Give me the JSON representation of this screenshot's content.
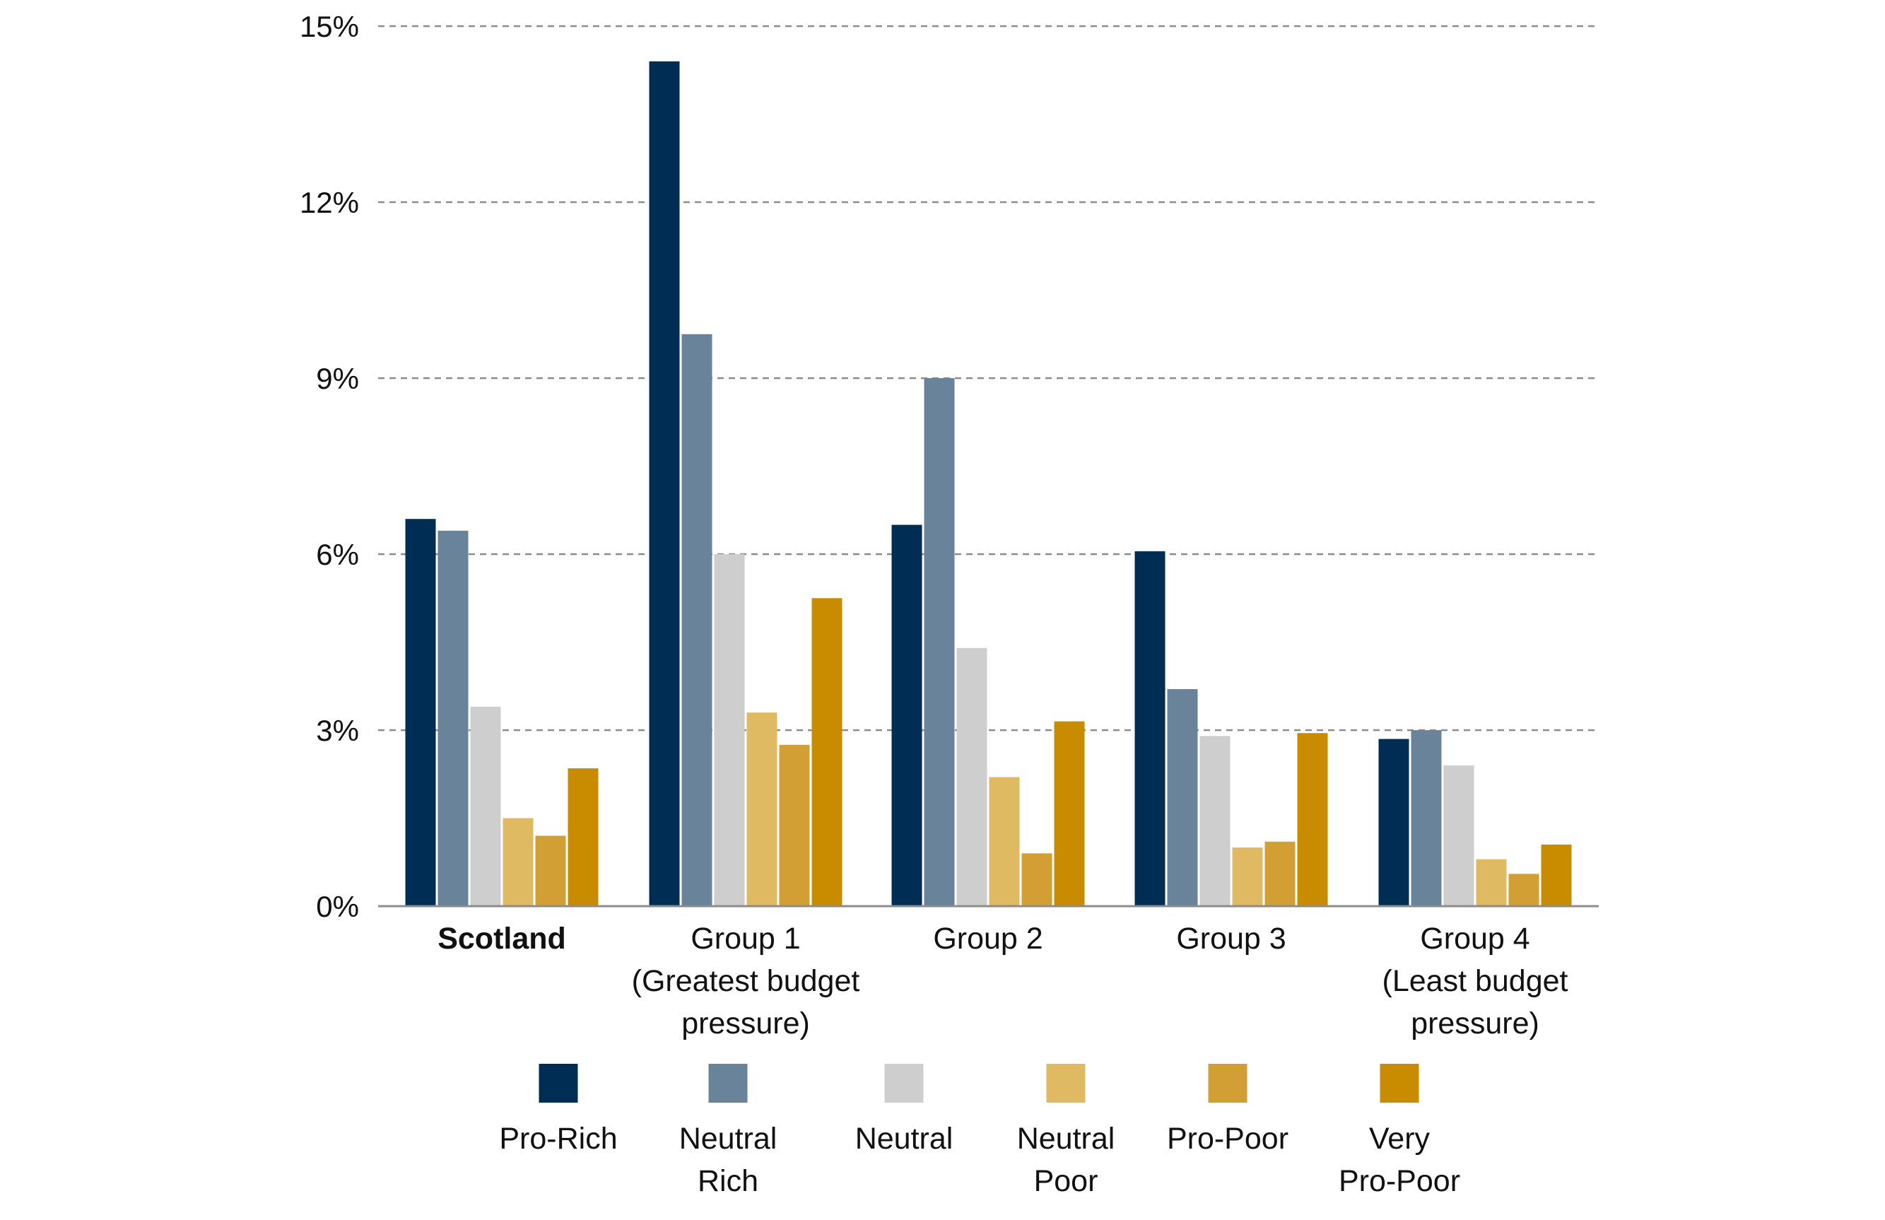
{
  "chart_data": {
    "type": "bar",
    "title": "",
    "xlabel": "",
    "ylabel": "",
    "ylim": [
      0,
      15
    ],
    "y_ticks": [
      0,
      3,
      6,
      9,
      12,
      15
    ],
    "y_tick_labels": [
      "0%",
      "3%",
      "6%",
      "9%",
      "12%",
      "15%"
    ],
    "grid": true,
    "legend_position": "bottom",
    "categories": [
      {
        "label": "Scotland",
        "bold": true,
        "lines": [
          "Scotland"
        ]
      },
      {
        "label": "Group 1 (Greatest budget pressure)",
        "bold": false,
        "lines": [
          "Group 1",
          "(Greatest budget",
          "pressure)"
        ]
      },
      {
        "label": "Group 2",
        "bold": false,
        "lines": [
          "Group 2"
        ]
      },
      {
        "label": "Group 3",
        "bold": false,
        "lines": [
          "Group 3"
        ]
      },
      {
        "label": "Group 4 (Least budget pressure)",
        "bold": false,
        "lines": [
          "Group 4",
          "(Least budget",
          "pressure)"
        ]
      }
    ],
    "series": [
      {
        "name": "Pro-Rich",
        "legend_lines": [
          "Pro-Rich"
        ],
        "color": "#002d54",
        "values": [
          6.6,
          14.4,
          6.5,
          6.05,
          2.85
        ]
      },
      {
        "name": "Neutral Rich",
        "legend_lines": [
          "Neutral",
          "Rich"
        ],
        "color": "#68839a",
        "values": [
          6.4,
          9.75,
          9.0,
          3.7,
          3.0
        ]
      },
      {
        "name": "Neutral",
        "legend_lines": [
          "Neutral"
        ],
        "color": "#cecece",
        "values": [
          3.4,
          6.0,
          4.4,
          2.9,
          2.4
        ]
      },
      {
        "name": "Neutral Poor",
        "legend_lines": [
          "Neutral",
          "Poor"
        ],
        "color": "#e0b963",
        "values": [
          1.5,
          3.3,
          2.2,
          1.0,
          0.8
        ]
      },
      {
        "name": "Pro-Poor",
        "legend_lines": [
          "Pro-Poor"
        ],
        "color": "#d29f35",
        "values": [
          1.2,
          2.75,
          0.9,
          1.1,
          0.55
        ]
      },
      {
        "name": "Very Pro-Poor",
        "legend_lines": [
          "Very",
          "Pro-Poor"
        ],
        "color": "#c98b00",
        "values": [
          2.35,
          5.25,
          3.15,
          2.95,
          1.05
        ]
      }
    ]
  }
}
